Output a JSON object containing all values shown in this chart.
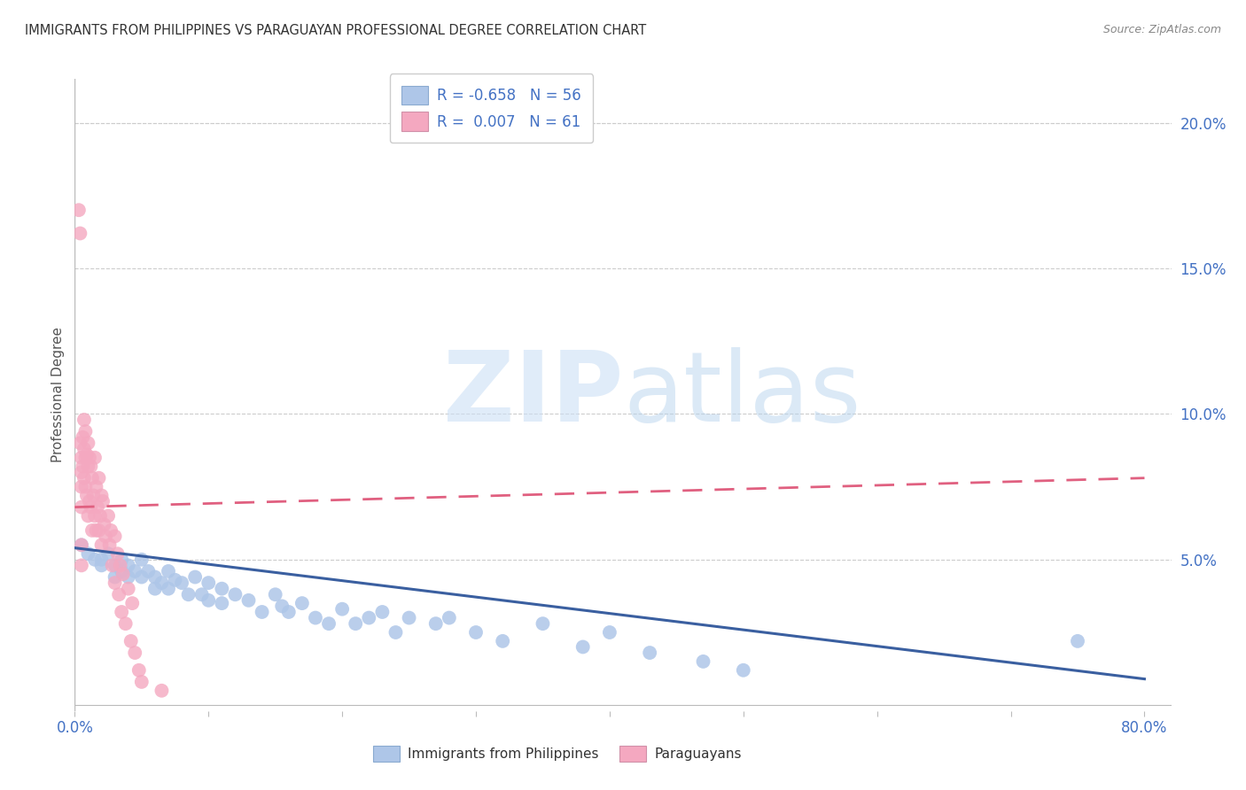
{
  "title": "IMMIGRANTS FROM PHILIPPINES VS PARAGUAYAN PROFESSIONAL DEGREE CORRELATION CHART",
  "source": "Source: ZipAtlas.com",
  "ylabel": "Professional Degree",
  "right_ytick_labels": [
    "",
    "5.0%",
    "10.0%",
    "15.0%",
    "20.0%"
  ],
  "right_ytick_vals": [
    0.0,
    0.05,
    0.1,
    0.15,
    0.2
  ],
  "xlim": [
    0.0,
    0.82
  ],
  "ylim": [
    -0.002,
    0.215
  ],
  "legend_label_blue": "Immigrants from Philippines",
  "legend_label_pink": "Paraguayans",
  "blue_color": "#aec6e8",
  "pink_color": "#f4a8c0",
  "blue_line_color": "#3a5fa0",
  "pink_line_color": "#e06080",
  "watermark_zip": "ZIP",
  "watermark_atlas": "atlas",
  "title_color": "#333333",
  "axis_color": "#4472c4",
  "legend_r_color": "#4472c4",
  "legend_label_color": "#333333",
  "blue_scatter_x": [
    0.005,
    0.01,
    0.015,
    0.02,
    0.02,
    0.025,
    0.03,
    0.03,
    0.035,
    0.035,
    0.04,
    0.04,
    0.045,
    0.05,
    0.05,
    0.055,
    0.06,
    0.06,
    0.065,
    0.07,
    0.07,
    0.075,
    0.08,
    0.085,
    0.09,
    0.095,
    0.1,
    0.1,
    0.11,
    0.11,
    0.12,
    0.13,
    0.14,
    0.15,
    0.155,
    0.16,
    0.17,
    0.18,
    0.19,
    0.2,
    0.21,
    0.22,
    0.23,
    0.24,
    0.25,
    0.27,
    0.28,
    0.3,
    0.32,
    0.35,
    0.38,
    0.4,
    0.43,
    0.47,
    0.5,
    0.75
  ],
  "blue_scatter_y": [
    0.055,
    0.052,
    0.05,
    0.05,
    0.048,
    0.052,
    0.048,
    0.044,
    0.05,
    0.046,
    0.048,
    0.044,
    0.046,
    0.05,
    0.044,
    0.046,
    0.044,
    0.04,
    0.042,
    0.046,
    0.04,
    0.043,
    0.042,
    0.038,
    0.044,
    0.038,
    0.042,
    0.036,
    0.04,
    0.035,
    0.038,
    0.036,
    0.032,
    0.038,
    0.034,
    0.032,
    0.035,
    0.03,
    0.028,
    0.033,
    0.028,
    0.03,
    0.032,
    0.025,
    0.03,
    0.028,
    0.03,
    0.025,
    0.022,
    0.028,
    0.02,
    0.025,
    0.018,
    0.015,
    0.012,
    0.022
  ],
  "pink_scatter_x": [
    0.003,
    0.004,
    0.004,
    0.005,
    0.005,
    0.005,
    0.005,
    0.005,
    0.005,
    0.006,
    0.006,
    0.007,
    0.007,
    0.007,
    0.008,
    0.008,
    0.008,
    0.009,
    0.009,
    0.01,
    0.01,
    0.01,
    0.011,
    0.011,
    0.012,
    0.012,
    0.013,
    0.013,
    0.014,
    0.015,
    0.015,
    0.016,
    0.016,
    0.017,
    0.018,
    0.018,
    0.019,
    0.02,
    0.02,
    0.021,
    0.022,
    0.023,
    0.025,
    0.026,
    0.027,
    0.028,
    0.03,
    0.03,
    0.032,
    0.033,
    0.034,
    0.035,
    0.036,
    0.038,
    0.04,
    0.042,
    0.043,
    0.045,
    0.048,
    0.05,
    0.065
  ],
  "pink_scatter_y": [
    0.17,
    0.162,
    0.09,
    0.085,
    0.08,
    0.075,
    0.068,
    0.055,
    0.048,
    0.092,
    0.082,
    0.098,
    0.088,
    0.078,
    0.094,
    0.085,
    0.075,
    0.086,
    0.072,
    0.09,
    0.082,
    0.065,
    0.085,
    0.07,
    0.082,
    0.068,
    0.078,
    0.06,
    0.072,
    0.085,
    0.065,
    0.075,
    0.06,
    0.068,
    0.078,
    0.06,
    0.065,
    0.072,
    0.055,
    0.07,
    0.062,
    0.058,
    0.065,
    0.055,
    0.06,
    0.048,
    0.058,
    0.042,
    0.052,
    0.038,
    0.048,
    0.032,
    0.045,
    0.028,
    0.04,
    0.022,
    0.035,
    0.018,
    0.012,
    0.008,
    0.005
  ],
  "blue_trend_x": [
    0.0,
    0.8
  ],
  "blue_trend_y": [
    0.054,
    0.009
  ],
  "pink_trend_x": [
    0.0,
    0.8
  ],
  "pink_trend_y": [
    0.068,
    0.078
  ]
}
